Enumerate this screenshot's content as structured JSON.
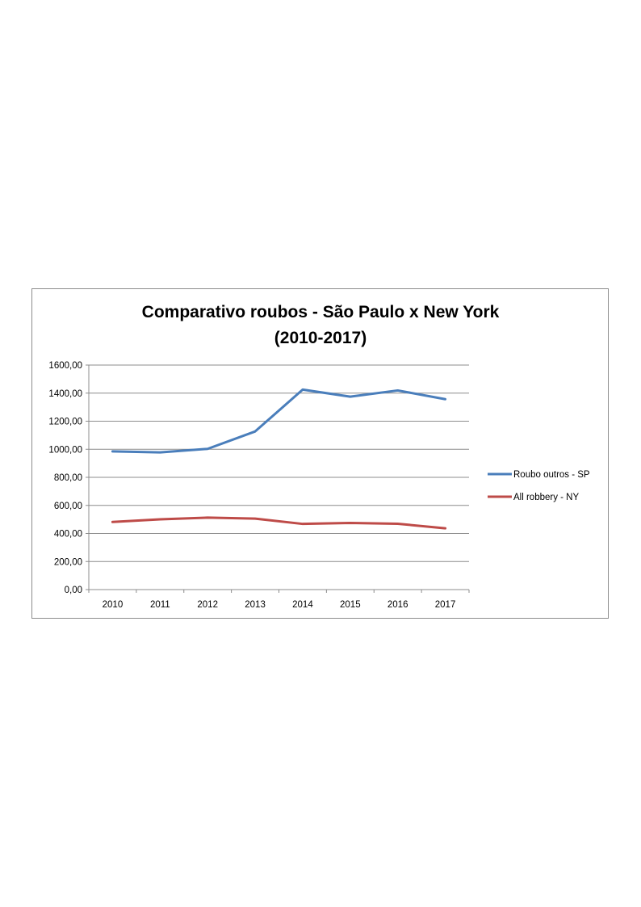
{
  "chart_data": {
    "type": "line",
    "title_lines": [
      "Comparativo roubos - São Paulo x New York",
      "(2010-2017)"
    ],
    "xlabel": "",
    "ylabel": "",
    "categories": [
      "2010",
      "2011",
      "2012",
      "2013",
      "2014",
      "2015",
      "2016",
      "2017"
    ],
    "ylim": [
      0,
      1600
    ],
    "y_ticks": [
      "0,00",
      "200,00",
      "400,00",
      "600,00",
      "800,00",
      "1000,00",
      "1200,00",
      "1400,00",
      "1600,00"
    ],
    "y_tick_values": [
      0,
      200,
      400,
      600,
      800,
      1000,
      1200,
      1400,
      1600
    ],
    "grid": true,
    "legend_position": "right",
    "series": [
      {
        "name": "Roubo outros - SP",
        "color": "#4a7ebb",
        "values": [
          985,
          978,
          1003,
          1127,
          1425,
          1375,
          1419,
          1357
        ]
      },
      {
        "name": "All robbery - NY",
        "color": "#be4b48",
        "values": [
          482,
          501,
          513,
          506,
          468,
          475,
          469,
          437
        ]
      }
    ]
  }
}
